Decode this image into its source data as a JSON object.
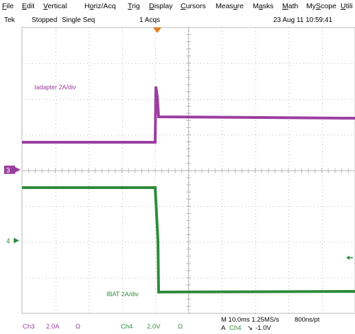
{
  "menu": {
    "items": [
      {
        "key": "file",
        "pre": "",
        "u": "F",
        "post": "ile"
      },
      {
        "key": "edit",
        "pre": "",
        "u": "E",
        "post": "dit"
      },
      {
        "key": "vertical",
        "pre": "",
        "u": "V",
        "post": "ertical"
      },
      {
        "key": "horiz",
        "pre": "H",
        "u": "o",
        "post": "riz/Acq"
      },
      {
        "key": "trig",
        "pre": "",
        "u": "T",
        "post": "rig"
      },
      {
        "key": "display",
        "pre": "",
        "u": "D",
        "post": "isplay"
      },
      {
        "key": "cursors",
        "pre": "",
        "u": "C",
        "post": "ursors"
      },
      {
        "key": "measure",
        "pre": "Meas",
        "u": "u",
        "post": "re"
      },
      {
        "key": "masks",
        "pre": "M",
        "u": "a",
        "post": "sks"
      },
      {
        "key": "math",
        "pre": "",
        "u": "M",
        "post": "ath"
      },
      {
        "key": "myscope",
        "pre": "My",
        "u": "S",
        "post": "cope"
      },
      {
        "key": "utilities",
        "pre": "",
        "u": "U",
        "post": "tili"
      }
    ]
  },
  "status": {
    "brand": "Tek",
    "state": "Stopped",
    "mode": "Single Seq",
    "acqs": "1 Acqs",
    "datetime": "23 Aug 11 10:59:41"
  },
  "waveforms": {
    "ch3": {
      "label": "Iadapter 2A/div",
      "marker": "3",
      "color": "#9b3ea0"
    },
    "ch4": {
      "label": "IBAT 2A/div",
      "marker": "4",
      "color": "#2e8b3a"
    }
  },
  "footer": {
    "ch3_name": "Ch3",
    "ch3_scale": "2.0A",
    "ch3_unit": "Ω",
    "ch4_name": "Ch4",
    "ch4_scale": "2.0V",
    "ch4_unit": "Ω",
    "timebase": "M 10.0ms 1.25MS/s",
    "rate": "800ns/pt",
    "trigger_mode": "A",
    "trigger_source": "Ch4",
    "trigger_slope": "↘",
    "trigger_level": "-1.0V"
  },
  "colors": {
    "grid": "#b8b8b8",
    "ch3": "#9b3ea0",
    "ch4": "#2e8b3a",
    "trigger_marker": "#f07a1a",
    "footer_purple": "#9b3ea0",
    "footer_green": "#2e8b3a"
  }
}
